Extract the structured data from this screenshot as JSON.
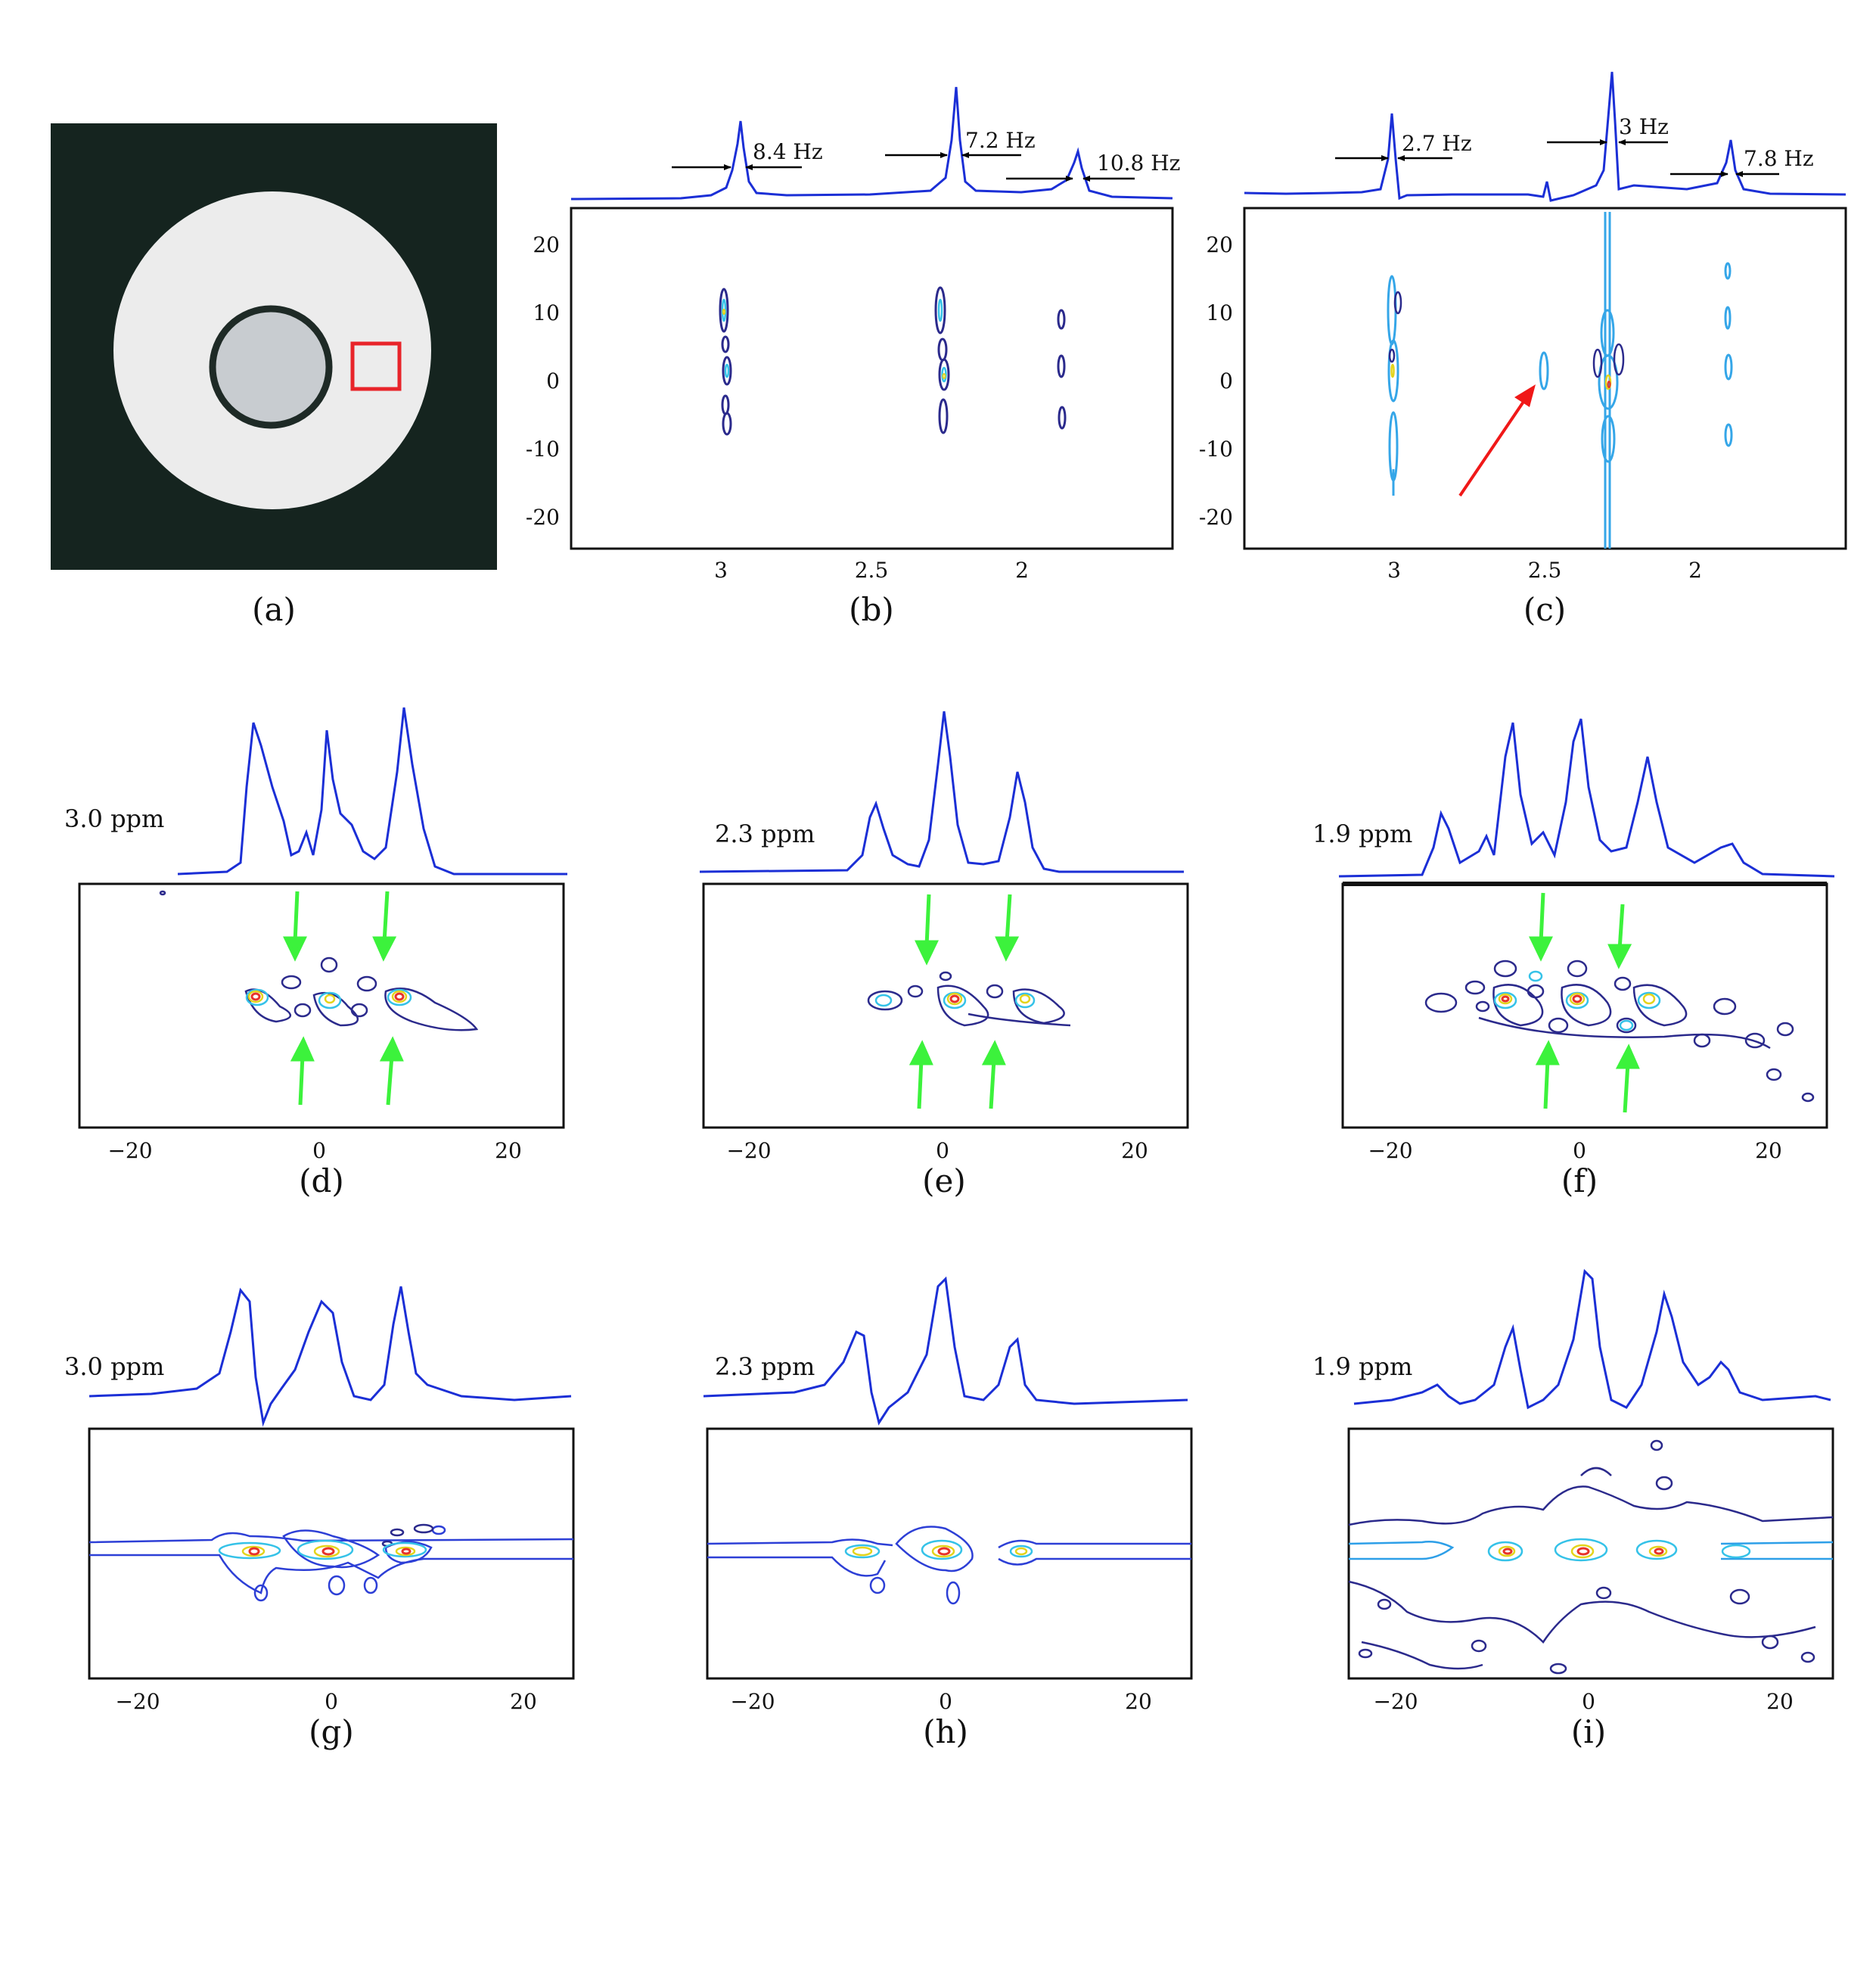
{
  "panels": {
    "a": {
      "caption": "(a)",
      "colors": {
        "background": "#15241f",
        "phantom": "#ececec",
        "roi": "#e8242a"
      }
    },
    "b": {
      "caption": "(b)",
      "x_ticks": [
        "3",
        "2.5",
        "2"
      ],
      "y_ticks": [
        "20",
        "10",
        "0",
        "-10",
        "-20"
      ],
      "linewidths": [
        {
          "label": "8.4 Hz",
          "ppm": 2.97
        },
        {
          "label": "7.2 Hz",
          "ppm": 2.22
        },
        {
          "label": "10.8 Hz",
          "ppm": 1.83
        }
      ]
    },
    "c": {
      "caption": "(c)",
      "x_ticks": [
        "3",
        "2.5",
        "2"
      ],
      "y_ticks": [
        "20",
        "10",
        "0",
        "-10",
        "-20"
      ],
      "linewidths": [
        {
          "label": "2.7 Hz",
          "ppm": 3.0
        },
        {
          "label": "3 Hz",
          "ppm": 2.28
        },
        {
          "label": "7.8 Hz",
          "ppm": 1.88
        }
      ]
    },
    "d": {
      "caption": "(d)",
      "ppm_label": "3.0 ppm",
      "x_ticks": [
        "−20",
        "0",
        "20"
      ]
    },
    "e": {
      "caption": "(e)",
      "ppm_label": "2.3 ppm",
      "x_ticks": [
        "−20",
        "0",
        "20"
      ]
    },
    "f": {
      "caption": "(f)",
      "ppm_label": "1.9 ppm",
      "x_ticks": [
        "−20",
        "0",
        "20"
      ]
    },
    "g": {
      "caption": "(g)",
      "ppm_label": "3.0 ppm",
      "x_ticks": [
        "−20",
        "0",
        "20"
      ]
    },
    "h": {
      "caption": "(h)",
      "ppm_label": "2.3 ppm",
      "x_ticks": [
        "−20",
        "0",
        "20"
      ]
    },
    "i": {
      "caption": "(i)",
      "ppm_label": "1.9 ppm",
      "x_ticks": [
        "−20",
        "0",
        "20"
      ]
    }
  },
  "colors": {
    "trace": "#1b2fd6",
    "contour_outer": "#2b2a8c",
    "arrow_green": "#3cf23c",
    "arrow_red": "#f01818"
  }
}
